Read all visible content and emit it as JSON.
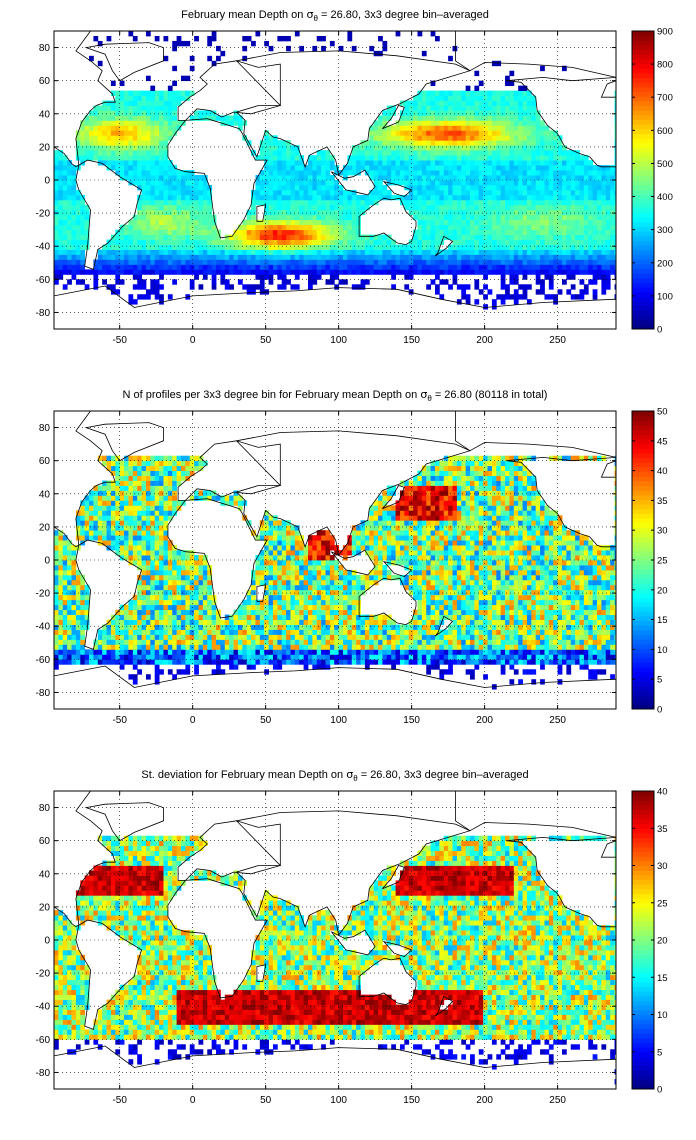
{
  "chart_data": [
    {
      "type": "heatmap",
      "title": "February mean Depth on σθ = 26.80, 3x3 degree bin–averaged",
      "title_main": "February mean Depth on ",
      "title_sigma": "σ",
      "title_sub": "θ",
      "title_rest": " = 26.80, 3x3 degree bin–averaged",
      "xlim": [
        -95,
        290
      ],
      "ylim": [
        -90,
        90
      ],
      "xticks": [
        -50,
        0,
        50,
        100,
        150,
        200,
        250
      ],
      "yticks": [
        -80,
        -60,
        -40,
        -20,
        0,
        20,
        40,
        60,
        80
      ],
      "grid": true,
      "colorbar": {
        "min": 0,
        "max": 900,
        "ticks": [
          0,
          100,
          200,
          300,
          400,
          500,
          600,
          700,
          800,
          900
        ]
      },
      "colormap": "jet",
      "field": "depth"
    },
    {
      "type": "heatmap",
      "title": "N of profiles per 3x3 degree bin for February mean Depth on σθ = 26.80 (80118 in total)",
      "title_main": "N of profiles per 3x3 degree bin for February mean Depth on ",
      "title_sigma": "σ",
      "title_sub": "θ",
      "title_rest": " = 26.80 (80118 in total)",
      "xlim": [
        -95,
        290
      ],
      "ylim": [
        -90,
        90
      ],
      "xticks": [
        -50,
        0,
        50,
        100,
        150,
        200,
        250
      ],
      "yticks": [
        -80,
        -60,
        -40,
        -20,
        0,
        20,
        40,
        60,
        80
      ],
      "grid": true,
      "colorbar": {
        "min": 0,
        "max": 50,
        "ticks": [
          0,
          5,
          10,
          15,
          20,
          25,
          30,
          35,
          40,
          45,
          50
        ]
      },
      "colormap": "jet",
      "field": "count"
    },
    {
      "type": "heatmap",
      "title": "St. deviation for February mean Depth on σθ = 26.80, 3x3 degree bin–averaged",
      "title_main": "St. deviation for February mean Depth on ",
      "title_sigma": "σ",
      "title_sub": "θ",
      "title_rest": " = 26.80, 3x3 degree bin–averaged",
      "xlim": [
        -95,
        290
      ],
      "ylim": [
        -90,
        90
      ],
      "xticks": [
        -50,
        0,
        50,
        100,
        150,
        200,
        250
      ],
      "yticks": [
        -80,
        -60,
        -40,
        -20,
        0,
        20,
        40,
        60,
        80
      ],
      "grid": true,
      "colorbar": {
        "min": 0,
        "max": 40,
        "ticks": [
          0,
          5,
          10,
          15,
          20,
          25,
          30,
          35,
          40
        ]
      },
      "colormap": "jet",
      "field": "std"
    }
  ],
  "colors": {
    "axes": "#000000",
    "grid": "#000000",
    "land": "#ffffff"
  }
}
